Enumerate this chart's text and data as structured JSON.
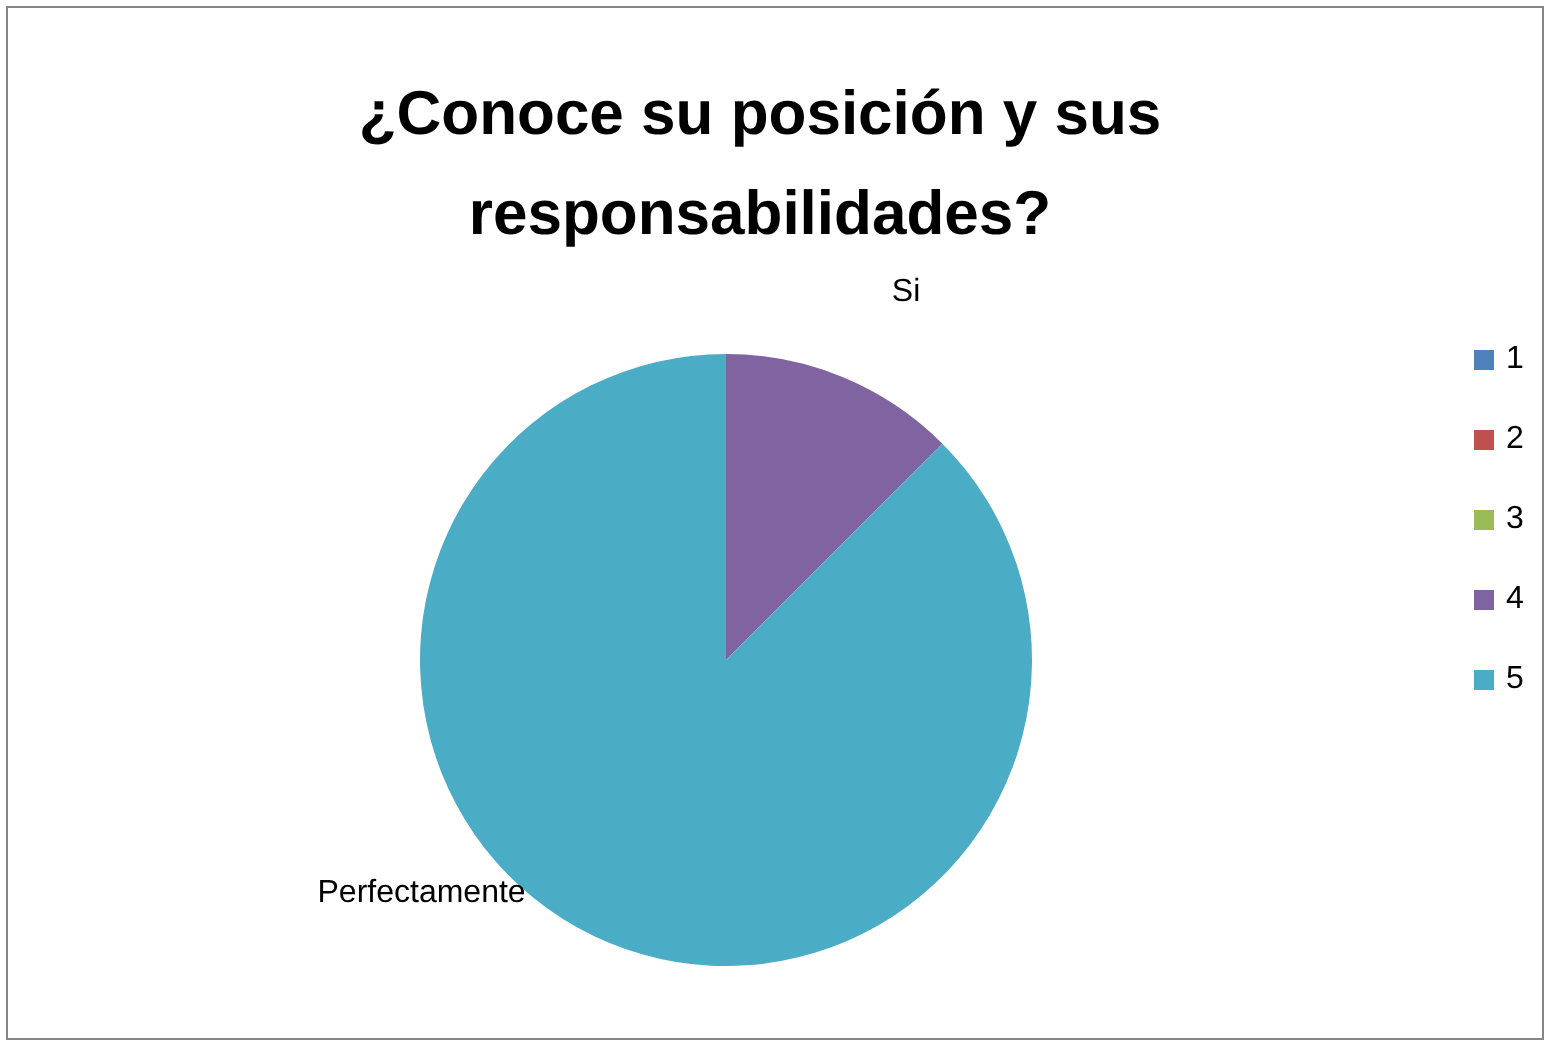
{
  "chart_data": {
    "type": "pie",
    "title": "¿Conoce su posición y sus responsabilidades?",
    "categories": [
      "1",
      "2",
      "3",
      "4",
      "5"
    ],
    "values": [
      0,
      0,
      0,
      12.5,
      87.5
    ],
    "colors": [
      "#4f81bd",
      "#c0504d",
      "#9bbb59",
      "#8064a2",
      "#4bacc6"
    ],
    "value_labels": [
      null,
      null,
      null,
      "Si",
      "Perfectamente"
    ],
    "legend": "right"
  }
}
